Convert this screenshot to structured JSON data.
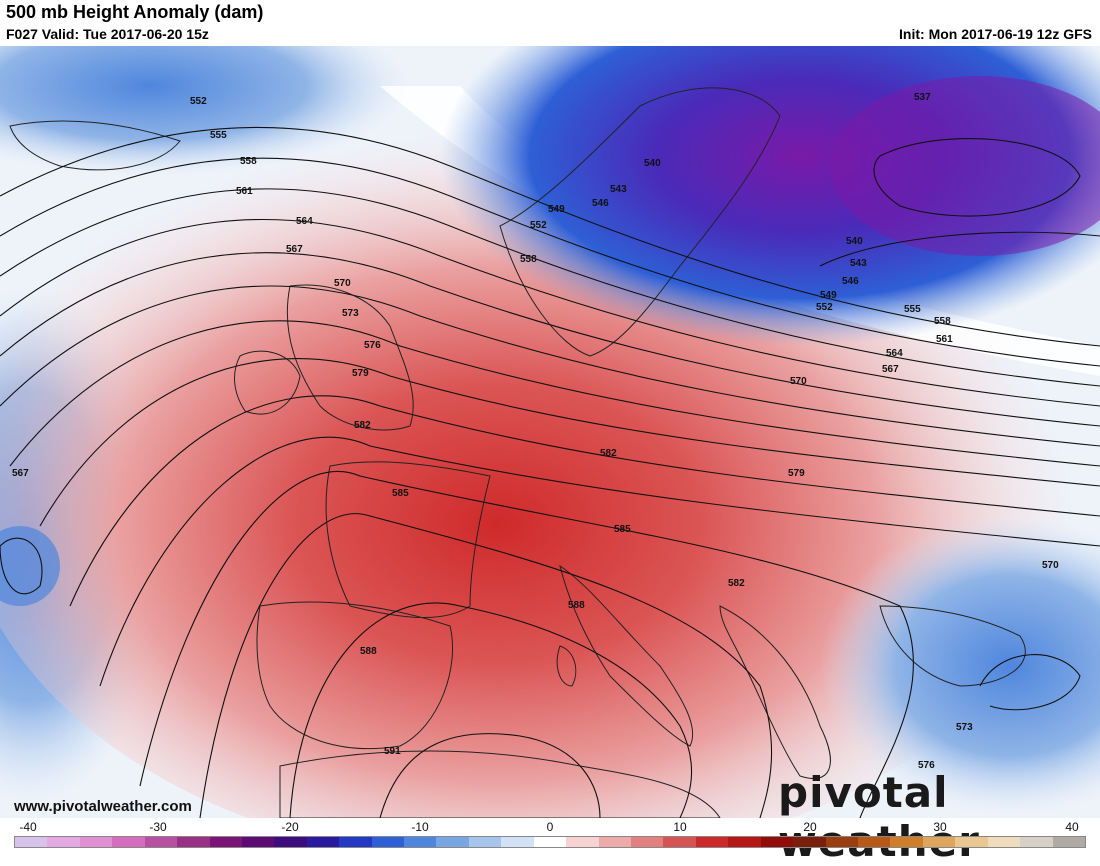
{
  "header": {
    "title": "500 mb Height Anomaly (dam)",
    "valid": "F027 Valid: Tue 2017-06-20 15z",
    "init": "Init: Mon 2017-06-19 12z GFS"
  },
  "footer": {
    "website": "www.pivotalweather.com",
    "logo": "pivotal weather"
  },
  "colorbar": {
    "ticks": [
      "-40",
      "-30",
      "-20",
      "-10",
      "0",
      "10",
      "20",
      "30",
      "40"
    ],
    "min": -40,
    "max": 40,
    "colors": [
      "#d7c2ec",
      "#e4a9e3",
      "#e28ed2",
      "#d56cbf",
      "#b84f9f",
      "#9a2f86",
      "#7b1477",
      "#5e0a74",
      "#3d0d7f",
      "#2a1aa0",
      "#2438c4",
      "#2e5fd6",
      "#4f86dd",
      "#79a6e3",
      "#a6c4ec",
      "#d2e2f5",
      "#ffffff",
      "#f6d2d2",
      "#ecaaaa",
      "#e27f7f",
      "#d75454",
      "#cc2a2a",
      "#b51616",
      "#930c0c",
      "#7a1f0c",
      "#9a3d10",
      "#b85a17",
      "#d07e2a",
      "#dda65c",
      "#e8c791",
      "#efdcbc",
      "#d6d0c9",
      "#b0aaa4"
    ]
  },
  "contour_labels": [
    {
      "text": "552"
    },
    {
      "text": "555"
    },
    {
      "text": "558"
    },
    {
      "text": "561"
    },
    {
      "text": "564"
    },
    {
      "text": "567"
    },
    {
      "text": "570"
    },
    {
      "text": "573"
    },
    {
      "text": "576"
    },
    {
      "text": "579"
    },
    {
      "text": "582"
    },
    {
      "text": "585"
    },
    {
      "text": "588"
    },
    {
      "text": "591"
    },
    {
      "text": "567"
    },
    {
      "text": "537"
    },
    {
      "text": "540"
    },
    {
      "text": "543"
    },
    {
      "text": "546"
    },
    {
      "text": "549"
    },
    {
      "text": "552"
    },
    {
      "text": "558"
    },
    {
      "text": "540"
    },
    {
      "text": "543"
    },
    {
      "text": "546"
    },
    {
      "text": "549"
    },
    {
      "text": "552"
    },
    {
      "text": "555"
    },
    {
      "text": "558"
    },
    {
      "text": "561"
    },
    {
      "text": "564"
    },
    {
      "text": "567"
    },
    {
      "text": "570"
    },
    {
      "text": "582"
    },
    {
      "text": "579"
    },
    {
      "text": "585"
    },
    {
      "text": "582"
    },
    {
      "text": "588"
    },
    {
      "text": "570"
    },
    {
      "text": "573"
    },
    {
      "text": "576"
    }
  ]
}
